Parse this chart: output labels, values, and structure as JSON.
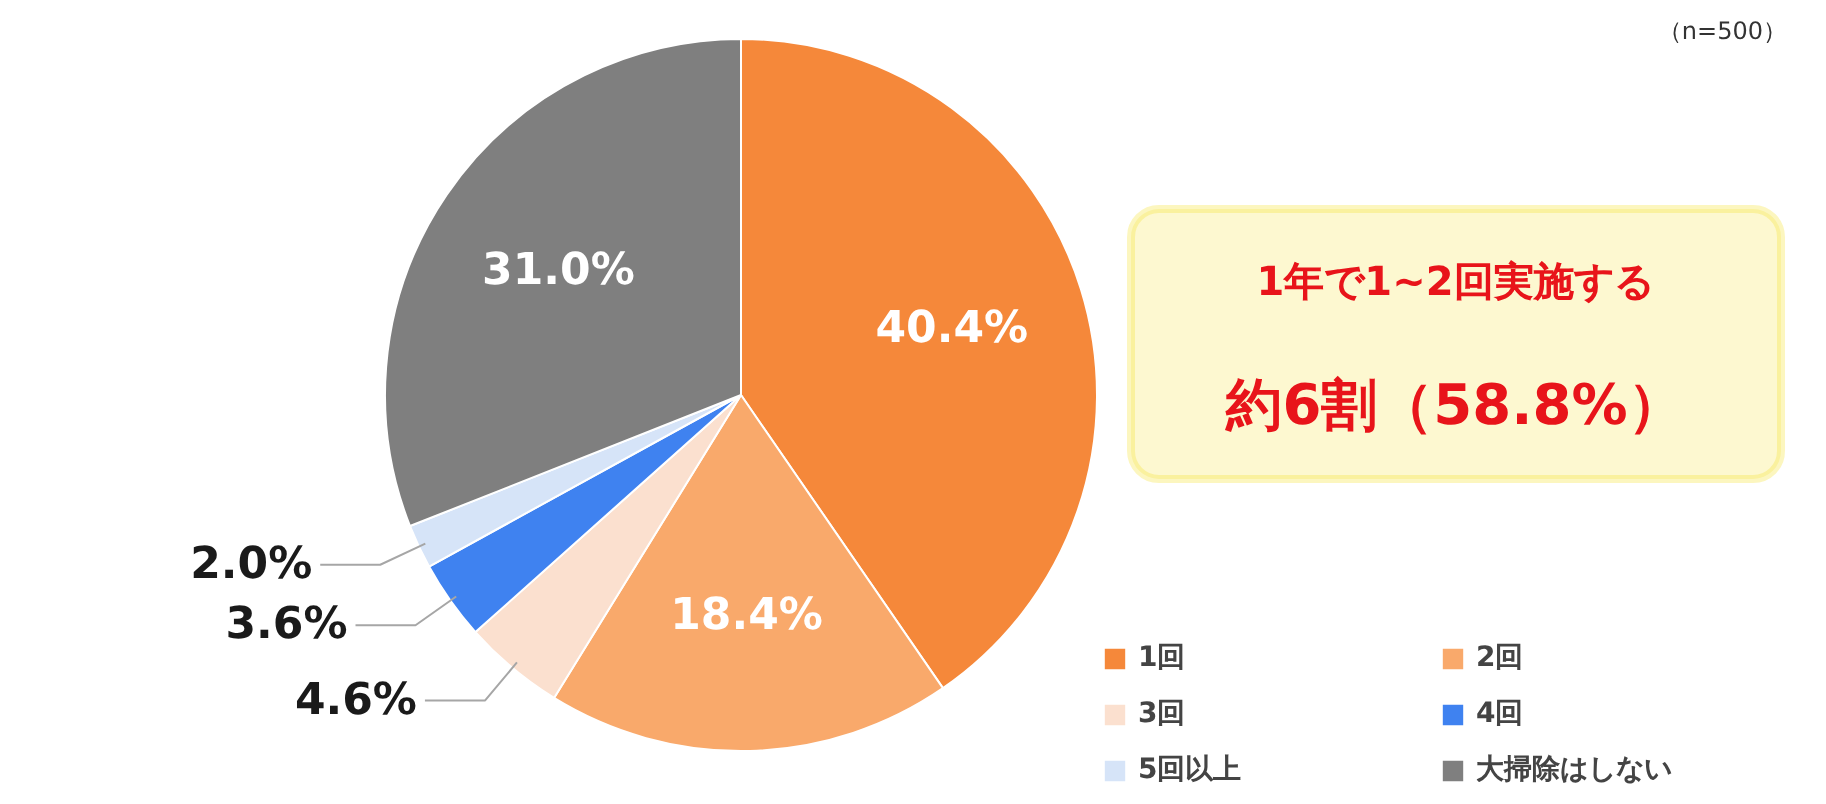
{
  "chart_data": {
    "type": "pie",
    "categories": [
      "1回",
      "2回",
      "3回",
      "4回",
      "5回以上",
      "大掃除はしない"
    ],
    "values": [
      40.4,
      18.4,
      4.6,
      3.6,
      2.0,
      31.0
    ],
    "colors": [
      "#f5883a",
      "#f9a96b",
      "#fbe0cf",
      "#3f82f0",
      "#d6e4f8",
      "#7f7f7f"
    ],
    "value_labels": [
      "40.4%",
      "18.4%",
      "4.6%",
      "3.6%",
      "2.0%",
      "31.0%"
    ],
    "legend": "bottom right",
    "annotations": [
      "（n=500）",
      "1年で1~2回実施する",
      "約6割（58.8%）"
    ]
  }
}
